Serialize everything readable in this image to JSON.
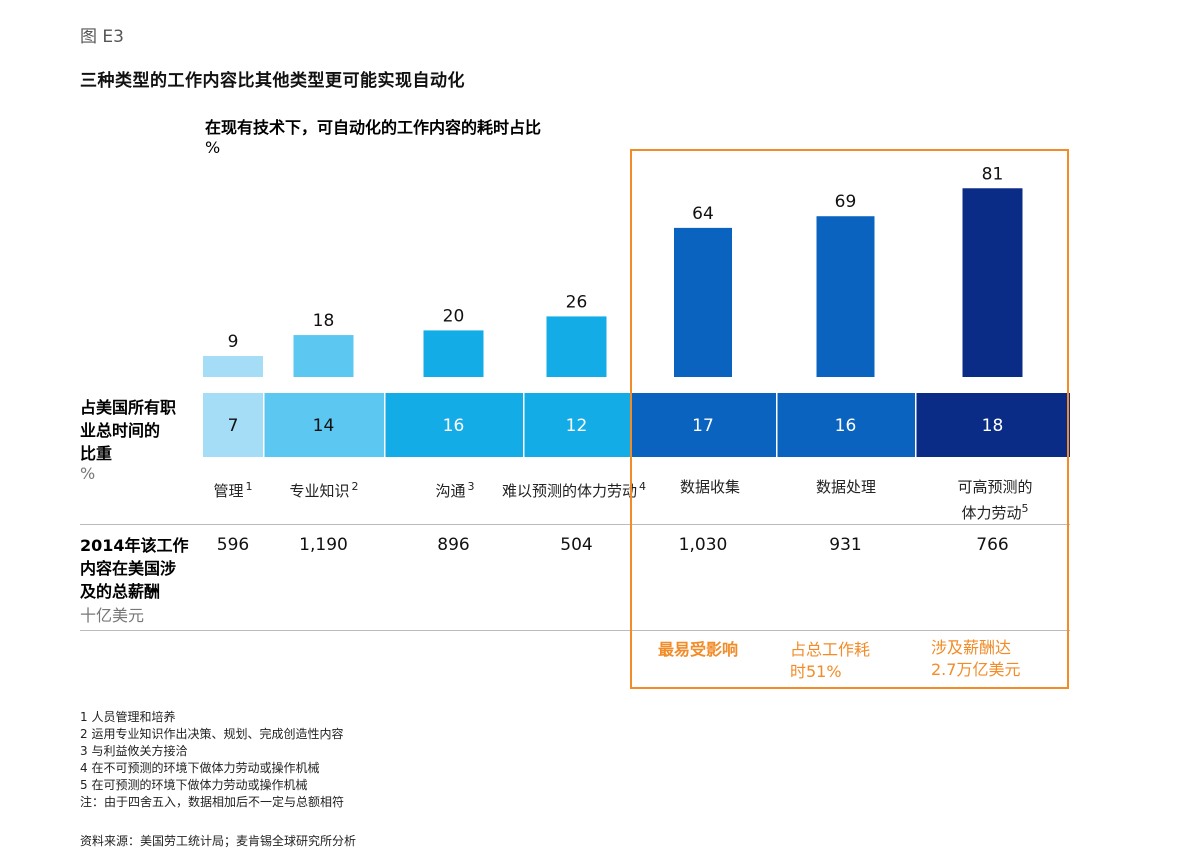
{
  "figure_label": "图 E3",
  "title": "三种类型的工作内容比其他类型更可能实现自动化",
  "chart_data": {
    "type": "bar",
    "title": "在现有技术下，可自动化的工作内容的耗时占比",
    "ylabel": "%",
    "categories": [
      "管理",
      "专业知识",
      "沟通",
      "难以预测的体力劳动",
      "数据收集",
      "数据处理",
      "可高预测的体力劳动"
    ],
    "category_footnotes": [
      "1",
      "2",
      "3",
      "4",
      "",
      "",
      "5"
    ],
    "values": [
      9,
      18,
      20,
      26,
      64,
      69,
      81
    ],
    "time_share": {
      "label_lines": [
        "占美国所有职",
        "业总时间的",
        "比重"
      ],
      "unit": "%",
      "values": [
        7,
        14,
        16,
        12,
        17,
        16,
        18
      ]
    },
    "wages": {
      "label_lines": [
        "2014年该工作",
        "内容在美国涉",
        "及的总薪酬"
      ],
      "unit": "十亿美元",
      "values": [
        "596",
        "1,190",
        "896",
        "504",
        "1,030",
        "931",
        "766"
      ]
    },
    "colors": [
      "#A4DDF5",
      "#5CC8F2",
      "#13ACE6",
      "#13ACE6",
      "#0A63BE",
      "#0A63BE",
      "#0B2C86"
    ],
    "ylim": [
      0,
      85
    ]
  },
  "highlight": {
    "color": "#F28C28",
    "annotations": [
      {
        "lines": [
          "最易受影响"
        ],
        "bold": true
      },
      {
        "lines": [
          "占总工作耗",
          "时51%"
        ]
      },
      {
        "lines": [
          "涉及薪酬达",
          "2.7万亿美元"
        ]
      }
    ]
  },
  "footnotes": [
    "1 人员管理和培养",
    "2 运用专业知识作出决策、规划、完成创造性内容",
    "3 与利益攸关方接洽",
    "4 在不可预测的环境下做体力劳动或操作机械",
    "5 在可预测的环境下做体力劳动或操作机械",
    "注：由于四舍五入，数据相加后不一定与总额相符"
  ],
  "source": "资料来源：美国劳工统计局；麦肯锡全球研究所分析"
}
